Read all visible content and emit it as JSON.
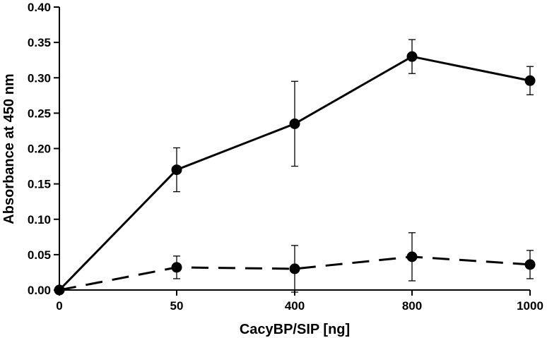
{
  "chart_data": {
    "type": "line",
    "title": "",
    "xlabel": "CacyBP/SIP [ng]",
    "ylabel": "Absorbance at 450 nm",
    "categories": [
      "0",
      "50",
      "400",
      "800",
      "1000"
    ],
    "ylim": [
      0,
      0.4
    ],
    "yticks": [
      "0.00",
      "0.05",
      "0.10",
      "0.15",
      "0.20",
      "0.25",
      "0.30",
      "0.35",
      "0.40"
    ],
    "grid": false,
    "legend": "none",
    "series": [
      {
        "line_style": "solid",
        "color": "#000000",
        "values": [
          0.0,
          0.17,
          0.235,
          0.33,
          0.296
        ],
        "error": [
          0.0,
          0.031,
          0.06,
          0.024,
          0.02
        ]
      },
      {
        "line_style": "dashed",
        "color": "#000000",
        "values": [
          0.0,
          0.032,
          0.03,
          0.047,
          0.036
        ],
        "error": [
          0.0,
          0.016,
          0.033,
          0.034,
          0.02
        ]
      }
    ]
  }
}
